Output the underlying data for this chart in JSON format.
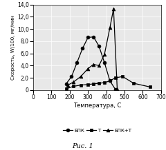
{
  "title": "",
  "xlabel": "Температура, С",
  "ylabel": "Скорость, W/100, мг/мин",
  "xlim": [
    0,
    700
  ],
  "ylim": [
    0,
    14
  ],
  "ytick_labels": [
    "0",
    "2,0",
    "4,0",
    "6,0",
    "8,0",
    "10,0",
    "12,0",
    "14,0"
  ],
  "yticks": [
    0,
    2,
    4,
    6,
    8,
    10,
    12,
    14
  ],
  "xticks": [
    0,
    100,
    200,
    300,
    400,
    500,
    600,
    700
  ],
  "caption": "Рис. 1",
  "bg_color": "#e8e8e8",
  "series": [
    {
      "label": "БПК",
      "marker": "o",
      "color": "#000000",
      "x": [
        180,
        210,
        240,
        270,
        300,
        330,
        360,
        390,
        420,
        450
      ],
      "y": [
        1.0,
        2.2,
        4.5,
        6.8,
        8.6,
        8.7,
        7.2,
        4.5,
        1.5,
        0.1
      ]
    },
    {
      "label": "Т",
      "marker": "s",
      "color": "#000000",
      "x": [
        180,
        220,
        260,
        300,
        330,
        360,
        390,
        420,
        450,
        490,
        550,
        640
      ],
      "y": [
        0.2,
        0.6,
        0.8,
        0.9,
        1.0,
        1.1,
        1.2,
        1.5,
        2.0,
        2.2,
        1.1,
        0.5
      ]
    },
    {
      "label": "БПК+Т",
      "marker": "^",
      "color": "#000000",
      "x": [
        190,
        220,
        260,
        300,
        330,
        360,
        390,
        420,
        440,
        460
      ],
      "y": [
        0.8,
        1.3,
        2.2,
        3.5,
        4.2,
        4.0,
        5.8,
        10.2,
        13.3,
        0.2
      ]
    }
  ]
}
